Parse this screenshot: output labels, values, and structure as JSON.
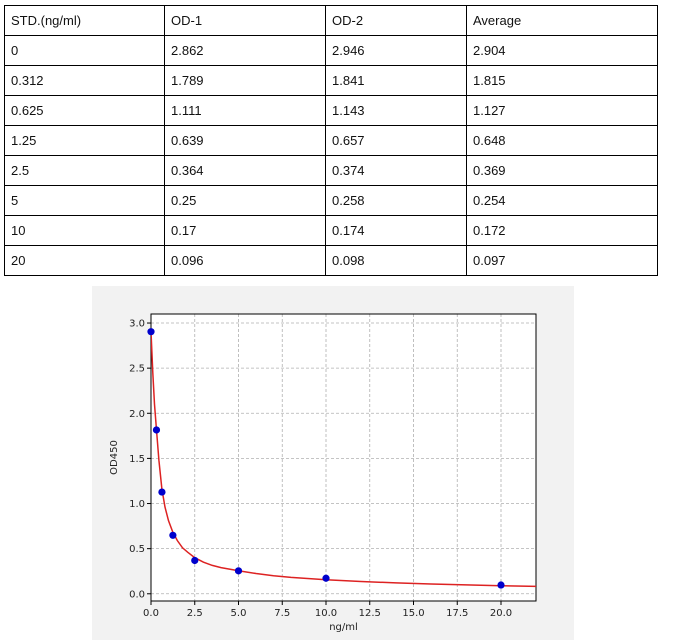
{
  "table": {
    "headers": [
      "STD.(ng/ml)",
      "OD-1",
      "OD-2",
      "Average"
    ],
    "rows": [
      [
        "0",
        "2.862",
        "2.946",
        "2.904"
      ],
      [
        "0.312",
        "1.789",
        "1.841",
        "1.815"
      ],
      [
        "0.625",
        "1.111",
        "1.143",
        "1.127"
      ],
      [
        "1.25",
        "0.639",
        "0.657",
        "0.648"
      ],
      [
        "2.5",
        "0.364",
        "0.374",
        "0.369"
      ],
      [
        "5",
        "0.25",
        "0.258",
        "0.254"
      ],
      [
        "10",
        "0.17",
        "0.174",
        "0.172"
      ],
      [
        "20",
        "0.096",
        "0.098",
        "0.097"
      ]
    ]
  },
  "chart_data": {
    "type": "scatter",
    "title": "",
    "xlabel": "ng/ml",
    "ylabel": "OD450",
    "xlim": [
      0,
      22
    ],
    "ylim": [
      -0.08,
      3.1
    ],
    "xticks": [
      0.0,
      2.5,
      5.0,
      7.5,
      10.0,
      12.5,
      15.0,
      17.5,
      20.0
    ],
    "yticks": [
      0.0,
      0.5,
      1.0,
      1.5,
      2.0,
      2.5,
      3.0
    ],
    "xtick_labels": [
      "0.0",
      "2.5",
      "5.0",
      "7.5",
      "10.0",
      "12.5",
      "15.0",
      "17.5",
      "20.0"
    ],
    "ytick_labels": [
      "0.0",
      "0.5",
      "1.0",
      "1.5",
      "2.0",
      "2.5",
      "3.0"
    ],
    "grid": true,
    "legend": false,
    "series": [
      {
        "type": "scatter",
        "color": "#0000cc",
        "x": [
          0,
          0.312,
          0.625,
          1.25,
          2.5,
          5,
          10,
          20
        ],
        "y": [
          2.904,
          1.815,
          1.127,
          0.648,
          0.369,
          0.254,
          0.172,
          0.097
        ]
      },
      {
        "type": "line",
        "color": "#dd2222",
        "description": "fitted curve",
        "x": [
          0,
          0.1,
          0.2,
          0.312,
          0.45,
          0.625,
          0.8,
          1.0,
          1.25,
          1.5,
          1.8,
          2.1,
          2.5,
          3.0,
          3.5,
          4.0,
          5.0,
          6.0,
          7.0,
          8.0,
          10.0,
          12.0,
          14.0,
          16.0,
          18.0,
          20.0,
          22.0
        ],
        "y": [
          2.904,
          2.45,
          2.1,
          1.815,
          1.48,
          1.16,
          0.96,
          0.81,
          0.68,
          0.59,
          0.51,
          0.46,
          0.4,
          0.35,
          0.315,
          0.29,
          0.255,
          0.225,
          0.2,
          0.182,
          0.156,
          0.136,
          0.12,
          0.108,
          0.098,
          0.09,
          0.082
        ]
      }
    ]
  }
}
